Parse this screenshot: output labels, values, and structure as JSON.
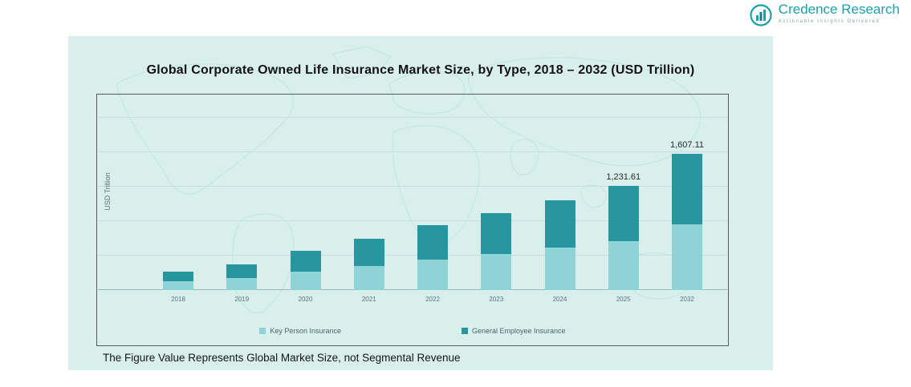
{
  "logo": {
    "name": "Credence Research",
    "tagline": "Actionable Insights Delivered"
  },
  "panel": {
    "background": "#d9efec"
  },
  "chart": {
    "title": "Global Corporate Owned Life Insurance Market Size, by Type, 2018 – 2032 (USD Trillion)",
    "ylabel": "USD Trillion",
    "note": "The Figure Value Represents Global Market Size, not Segmental Revenue"
  },
  "chart_data": {
    "type": "bar",
    "stacked": true,
    "title": "Global Corporate Owned Life Insurance Market Size, by Type, 2018 – 2032 (USD Trillion)",
    "xlabel": "",
    "ylabel": "USD Trillion",
    "categories": [
      "2018",
      "2019",
      "2020",
      "2021",
      "2022",
      "2023",
      "2024",
      "2025",
      "2032"
    ],
    "series": [
      {
        "name": "Key Person Insurance",
        "color": "#8ed3d6",
        "values": [
          100,
          138,
          214,
          284,
          357,
          425,
          498,
          579,
          771
        ]
      },
      {
        "name": "General Employee Insurance",
        "color": "#27969e",
        "values": [
          112,
          156,
          243,
          320,
          402,
          480,
          562,
          652.61,
          836.11
        ]
      }
    ],
    "totals": [
      212,
      294,
      457,
      604,
      759,
      905,
      1060,
      1231.61,
      1607.11
    ],
    "data_labels": [
      "",
      "",
      "",
      "",
      "",
      "",
      "",
      "1,231.61",
      "1,607.11"
    ],
    "legend_position": "bottom-inside",
    "grid": "horizontal",
    "gridlines": 6
  }
}
